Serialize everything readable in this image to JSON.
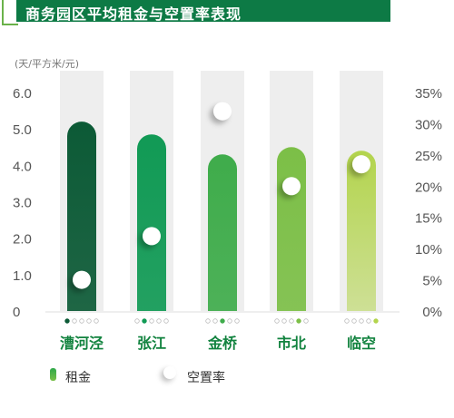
{
  "title": "商务园区平均租金与空置率表现",
  "unit_label": "(天/平方米/元)",
  "legend": {
    "rent_label": "租金",
    "vacancy_label": "空置率"
  },
  "colors": {
    "header": "#0d7a45",
    "bars": [
      "#0c5a36",
      "#119a55",
      "#3fac4b",
      "#7cbf47",
      "#b3d44d"
    ],
    "track": "#eeeeee"
  },
  "chart_data": {
    "type": "bar",
    "categories": [
      "漕河泾",
      "张江",
      "金桥",
      "市北",
      "临空"
    ],
    "series": [
      {
        "name": "租金",
        "axis": "left",
        "values": [
          5.2,
          4.85,
          4.3,
          4.5,
          4.4
        ]
      },
      {
        "name": "空置率",
        "axis": "right",
        "values": [
          5,
          12,
          32,
          20,
          23.5
        ]
      }
    ],
    "y_left": {
      "ylim": [
        0,
        6
      ],
      "ticks": [
        "0",
        "1.0",
        "2.0",
        "3.0",
        "4.0",
        "5.0",
        "6.0"
      ]
    },
    "y_right": {
      "ylim": [
        0,
        35
      ],
      "ticks": [
        "0%",
        "5%",
        "10%",
        "15%",
        "20%",
        "25%",
        "30%",
        "35%"
      ]
    },
    "grid": false,
    "legend_position": "bottom"
  }
}
